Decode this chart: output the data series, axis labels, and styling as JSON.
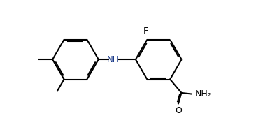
{
  "background_color": "#ffffff",
  "line_color": "#000000",
  "nh_color": "#1a3a8a",
  "lw": 1.5,
  "dbo": 0.06,
  "figsize": [
    3.66,
    1.89
  ],
  "dpi": 100,
  "xlim": [
    -0.5,
    8.5
  ],
  "ylim": [
    -1.5,
    4.5
  ]
}
